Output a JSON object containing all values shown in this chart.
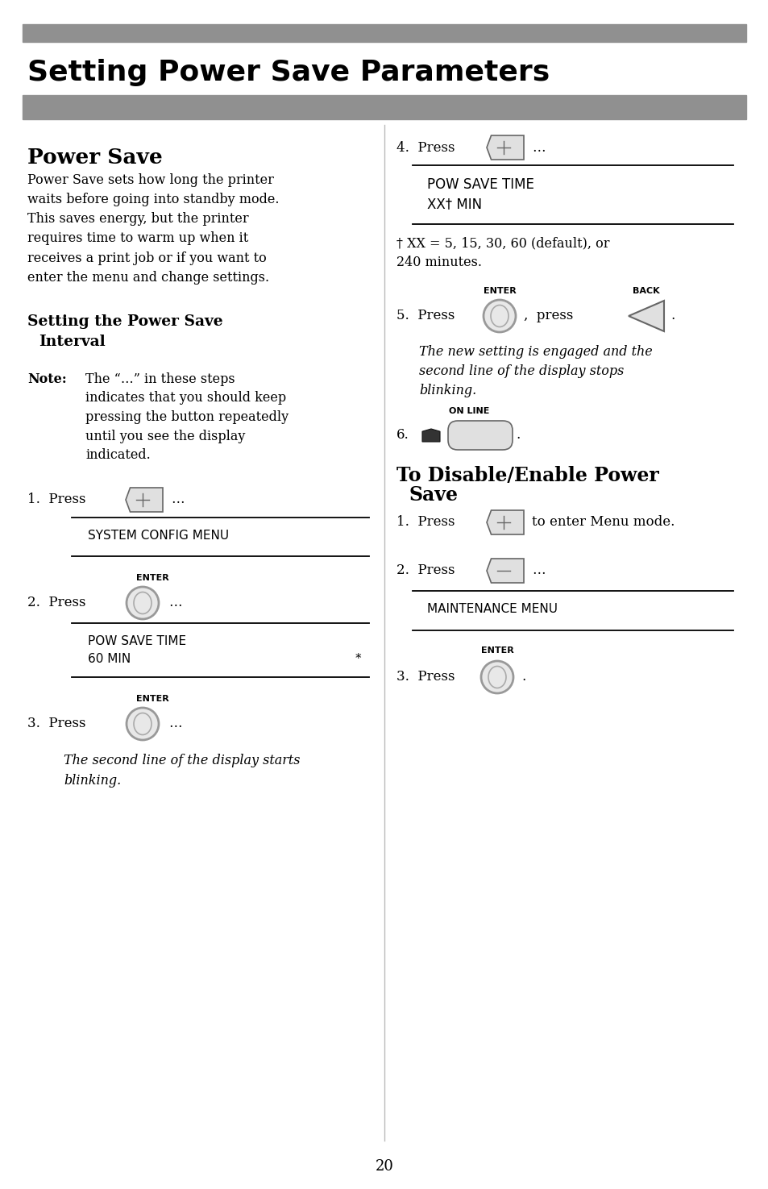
{
  "title": "Setting Power Save Parameters",
  "bar_color": "#888888",
  "bg_color": "#ffffff",
  "page_number": "20",
  "left_col": {
    "section_title": "Power Save",
    "intro_text": "Power Save sets how long the printer\nwaits before going into standby mode.\nThis saves energy, but the printer\nrequires time to warm up when it\nreceives a print job or if you want to\nenter the menu and change settings.",
    "subsection_title_1": "Setting the Power Save",
    "subsection_title_2": "  Interval",
    "note_label": "Note:",
    "note_text": "The “…” in these steps\nindicates that you should keep\npressing the button repeatedly\nuntil you see the display\nindicated.",
    "display1_line1": "SYSTEM CONFIG MENU",
    "step2_label": "ENTER",
    "display2_line1": "POW SAVE TIME",
    "display2_line2": "60 MIN",
    "display2_asterisk": "*",
    "step3_label": "ENTER",
    "italic_text_1": "The second line of the display starts",
    "italic_text_2": "blinking."
  },
  "right_col": {
    "display3_line1": "POW SAVE TIME",
    "display3_line2": "XX† MIN",
    "footnote_1": "† XX = 5, 15, 30, 60 (default), or",
    "footnote_2": "240 minutes.",
    "step5_enter_label": "ENTER",
    "step5_back_label": "BACK",
    "italic_text_1": "The new setting is engaged and the",
    "italic_text_2": "second line of the display stops",
    "italic_text_3": "blinking.",
    "online_label": "ON LINE",
    "section2_title_1": "To Disable/Enable Power",
    "section2_title_2": "  Save",
    "r_step1_suffix": "to enter Menu mode.",
    "display4_line1": "MAINTENANCE MENU",
    "r_step3_label": "ENTER"
  }
}
